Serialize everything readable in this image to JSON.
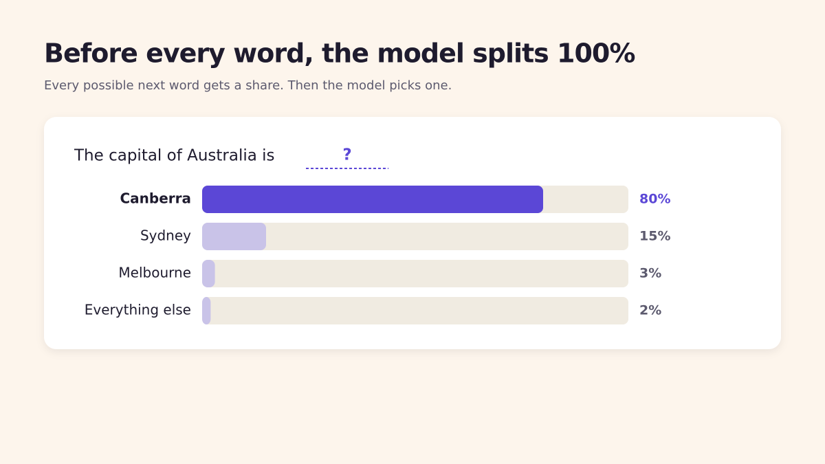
{
  "chart_data": {
    "type": "bar",
    "orientation": "horizontal",
    "title": "Before every word, the model splits 100%",
    "subtitle": "Every possible next word gets a share. Then the model picks one.",
    "prompt": "The capital of Australia is",
    "blank": "?",
    "categories": [
      "Canberra",
      "Sydney",
      "Melbourne",
      "Everything else"
    ],
    "values": [
      80,
      15,
      3,
      2
    ],
    "value_labels": [
      "80%",
      "15%",
      "3%",
      "2%"
    ],
    "colors": [
      "#5b47d6",
      "#c9c3e8",
      "#c9c3e8",
      "#c9c3e8"
    ],
    "track_color": "#f0ebe1",
    "xlim": [
      0,
      100
    ]
  }
}
